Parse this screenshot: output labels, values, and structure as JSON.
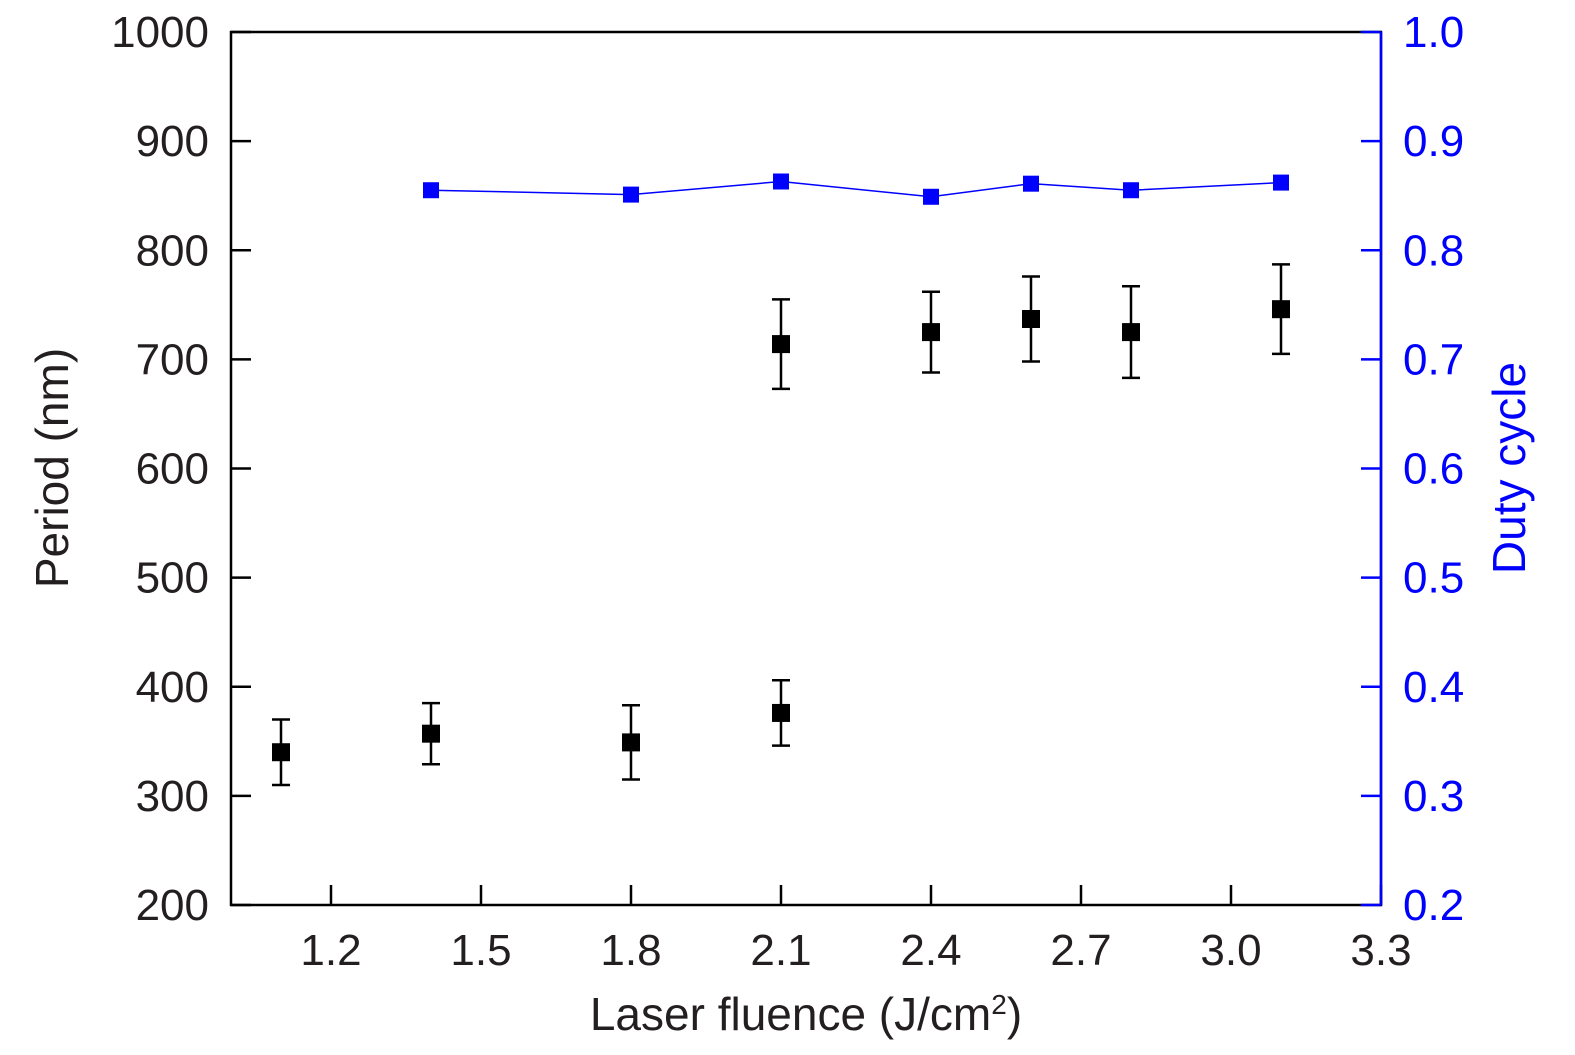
{
  "chart_data": {
    "type": "scatter",
    "title": "",
    "xlabel": "Laser fluence (J/cm",
    "xlabel_sup": "2",
    "xlabel_end": ")",
    "ylabel": "Period (nm)",
    "y2label": "Duty cycle",
    "xlim": [
      1.0,
      3.3
    ],
    "ylim": [
      200,
      1000
    ],
    "y2lim": [
      0.2,
      1.0
    ],
    "xticks": [
      "1.2",
      "1.5",
      "1.8",
      "2.1",
      "2.4",
      "2.7",
      "3.0",
      "3.3"
    ],
    "yticks": [
      "200",
      "300",
      "400",
      "500",
      "600",
      "700",
      "800",
      "900",
      "1000"
    ],
    "y2ticks": [
      "0.2",
      "0.3",
      "0.4",
      "0.5",
      "0.6",
      "0.7",
      "0.8",
      "0.9",
      "1.0"
    ],
    "grid": false,
    "colors": {
      "period": "#000000",
      "duty": "#0000ff",
      "right_axis": "#0000ff",
      "text": "#231f20"
    },
    "series": [
      {
        "axis": "left",
        "marker": "square",
        "points": [
          {
            "x": 1.1,
            "y": 340,
            "err": 30
          },
          {
            "x": 1.4,
            "y": 357,
            "err": 28
          },
          {
            "x": 1.8,
            "y": 349,
            "err": 34
          },
          {
            "x": 2.1,
            "y": 376,
            "err": 30
          },
          {
            "x": 2.1,
            "y": 714,
            "err": 41
          },
          {
            "x": 2.4,
            "y": 725,
            "err": 37
          },
          {
            "x": 2.6,
            "y": 737,
            "err": 39
          },
          {
            "x": 2.8,
            "y": 725,
            "err": 42
          },
          {
            "x": 3.1,
            "y": 746,
            "err": 41
          }
        ]
      },
      {
        "axis": "right",
        "marker": "square",
        "line": true,
        "points": [
          {
            "x": 1.4,
            "y": 0.855
          },
          {
            "x": 1.8,
            "y": 0.851
          },
          {
            "x": 2.1,
            "y": 0.863
          },
          {
            "x": 2.4,
            "y": 0.849
          },
          {
            "x": 2.6,
            "y": 0.861
          },
          {
            "x": 2.8,
            "y": 0.855
          },
          {
            "x": 3.1,
            "y": 0.862
          }
        ]
      }
    ]
  }
}
